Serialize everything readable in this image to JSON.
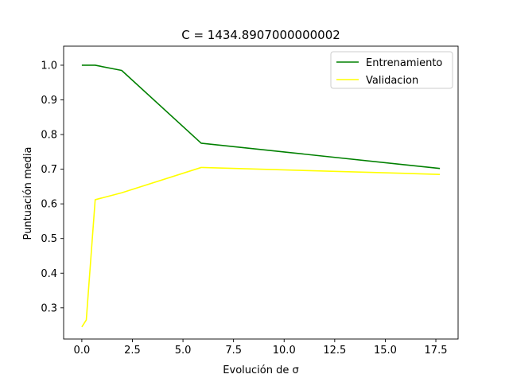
{
  "chart_data": {
    "type": "line",
    "title": "C = 1434.8907000000002",
    "xlabel": "Evolución de σ",
    "ylabel": "Puntuación media",
    "xlim": [
      -0.9,
      18.6
    ],
    "ylim": [
      0.21,
      1.055
    ],
    "x_ticks": [
      0.0,
      2.5,
      5.0,
      7.5,
      10.0,
      12.5,
      15.0,
      17.5
    ],
    "x_tick_labels": [
      "0.0",
      "2.5",
      "5.0",
      "7.5",
      "10.0",
      "12.5",
      "15.0",
      "17.5"
    ],
    "y_ticks": [
      0.3,
      0.4,
      0.5,
      0.6,
      0.7,
      0.8,
      0.9,
      1.0
    ],
    "y_tick_labels": [
      "0.3",
      "0.4",
      "0.5",
      "0.6",
      "0.7",
      "0.8",
      "0.9",
      "1.0"
    ],
    "grid": false,
    "legend_position": "top-right",
    "series": [
      {
        "name": "Entrenamiento",
        "color": "#008000",
        "x": [
          0.0,
          0.22,
          0.66,
          1.97,
          5.9,
          17.7
        ],
        "y": [
          1.0,
          1.0,
          1.0,
          0.985,
          0.775,
          0.702
        ]
      },
      {
        "name": "Validacion",
        "color": "#ffff00",
        "x": [
          0.0,
          0.22,
          0.66,
          1.97,
          5.9,
          17.7
        ],
        "y": [
          0.245,
          0.265,
          0.612,
          0.632,
          0.705,
          0.685
        ]
      }
    ]
  }
}
